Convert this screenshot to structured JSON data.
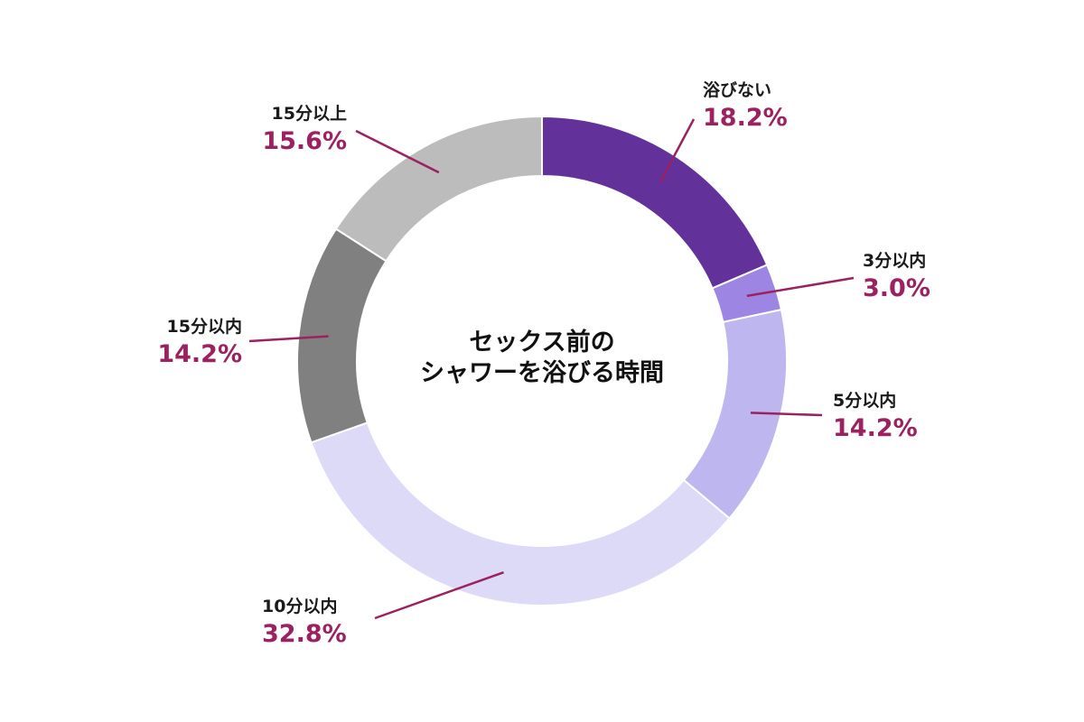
{
  "chart_data": {
    "type": "pie",
    "title_lines": [
      "セックス前の",
      "シャワーを浴びる時間"
    ],
    "slices": [
      {
        "label": "浴びない",
        "value": 18.2,
        "value_label": "18.2%",
        "color": "#62329a"
      },
      {
        "label": "3分以内",
        "value": 3.0,
        "value_label": "3.0%",
        "color": "#9d86e3"
      },
      {
        "label": "5分以内",
        "value": 14.2,
        "value_label": "14.2%",
        "color": "#bdb6ef"
      },
      {
        "label": "10分以内",
        "value": 32.8,
        "value_label": "32.8%",
        "color": "#dddaf7"
      },
      {
        "label": "15分以内",
        "value": 14.2,
        "value_label": "14.2%",
        "color": "#808080"
      },
      {
        "label": "15分以上",
        "value": 15.6,
        "value_label": "15.6%",
        "color": "#bcbcbc"
      }
    ],
    "leader_color": "#9b2160"
  }
}
